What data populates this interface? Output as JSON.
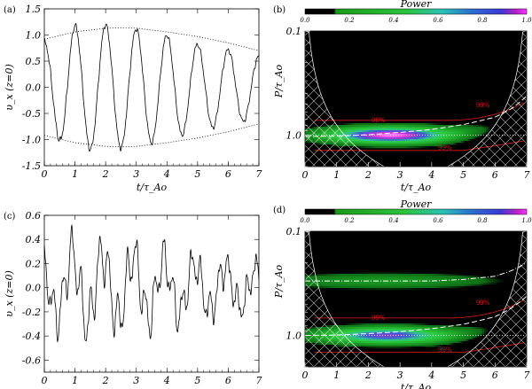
{
  "figure": {
    "panel_labels": [
      "(a)",
      "(b)",
      "(c)",
      "(d)"
    ],
    "colorbar_title": "Power",
    "colorbar_ticks": [
      "0.0",
      "0.2",
      "0.4",
      "0.6",
      "0.8",
      "1.0"
    ],
    "contour_label": "99%"
  },
  "chart_data": [
    {
      "id": "a",
      "type": "line",
      "title": "",
      "xlabel": "t/τ_Ao",
      "ylabel": "υ_x (z=0)",
      "xlim": [
        0,
        7
      ],
      "ylim": [
        -1.5,
        1.5
      ],
      "xticks": [
        "0",
        "1",
        "2",
        "3",
        "4",
        "5",
        "6",
        "7"
      ],
      "yticks": [
        "-1.5",
        "-1.0",
        "-0.5",
        "0.0",
        "0.5",
        "1.0",
        "1.5"
      ],
      "period": 1.0,
      "envelope": {
        "style": "dotted",
        "t": [
          0,
          1,
          2,
          2.5,
          3,
          4,
          5,
          6,
          7
        ],
        "amplitude": [
          0.92,
          1.06,
          1.13,
          1.14,
          1.13,
          1.06,
          0.97,
          0.85,
          0.7
        ]
      },
      "signal_amplitude": {
        "t": [
          0,
          1,
          2,
          3,
          4,
          5,
          6,
          7
        ],
        "amplitude": [
          0.85,
          1.18,
          1.2,
          1.12,
          1.0,
          0.82,
          0.72,
          0.58
        ]
      }
    },
    {
      "id": "b",
      "type": "heatmap",
      "xlabel": "t/τ_Ao",
      "ylabel": "P/τ_Ao",
      "xlim": [
        0,
        7
      ],
      "ylim": [
        0.1,
        2.0
      ],
      "yscale": "log",
      "xticks": [
        "0",
        "1",
        "2",
        "3",
        "4",
        "5",
        "6",
        "7"
      ],
      "yticks": [
        "0.1",
        "1.0"
      ],
      "colorbar_range": [
        0.0,
        1.0
      ],
      "bands": [
        {
          "period_center": 1.0,
          "t_peak": 2.7,
          "peak_power": 1.0,
          "width": 2.2,
          "drift_end": 0.35
        }
      ],
      "ridge_dashed": {
        "t": [
          0,
          1,
          2,
          3,
          4,
          5,
          6,
          6.5,
          7
        ],
        "period": [
          1.03,
          1.02,
          0.99,
          0.94,
          0.88,
          0.79,
          0.67,
          0.56,
          0.42
        ]
      },
      "ridge_dotted_period": 1.0,
      "contour_99": {
        "lower_period": 0.72,
        "upper_period": 1.4
      }
    },
    {
      "id": "c",
      "type": "line",
      "title": "",
      "xlabel": "t/τ_Ao",
      "ylabel": "υ_x (z=0)",
      "xlim": [
        0,
        7
      ],
      "ylim": [
        -0.7,
        0.6
      ],
      "xticks": [
        "0",
        "1",
        "2",
        "3",
        "4",
        "5",
        "6",
        "7"
      ],
      "yticks": [
        "-0.6",
        "-0.4",
        "-0.2",
        "0.0",
        "0.2",
        "0.4",
        "0.6"
      ],
      "period": 1.0,
      "signal_amplitude": {
        "t": [
          0,
          1,
          2,
          3,
          4,
          5,
          6,
          7
        ],
        "amplitude": [
          0.3,
          0.45,
          0.42,
          0.4,
          0.34,
          0.3,
          0.26,
          0.22
        ]
      },
      "secondary_period": 0.3
    },
    {
      "id": "d",
      "type": "heatmap",
      "xlabel": "t/τ_Ao",
      "ylabel": "P/τ_Ao",
      "xlim": [
        0,
        7
      ],
      "ylim": [
        0.1,
        2.0
      ],
      "yscale": "log",
      "xticks": [
        "0",
        "1",
        "2",
        "3",
        "4",
        "5",
        "6",
        "7"
      ],
      "yticks": [
        "0.1",
        "1.0"
      ],
      "colorbar_range": [
        0.0,
        1.0
      ],
      "bands": [
        {
          "period_center": 1.0,
          "t_peak": 2.6,
          "peak_power": 0.85,
          "width": 2.3,
          "drift_end": 0.3
        },
        {
          "period_center": 0.3,
          "t_peak": 2.5,
          "peak_power": 0.3,
          "width": 4.0,
          "drift_end": 0.0
        }
      ],
      "ridge_dashed": {
        "t": [
          0,
          1,
          2,
          3,
          4,
          5,
          6,
          6.5,
          7
        ],
        "period": [
          1.0,
          0.99,
          0.96,
          0.92,
          0.86,
          0.78,
          0.66,
          0.55,
          0.42
        ]
      },
      "ridge_dashdot": {
        "t": [
          0,
          1,
          2,
          3,
          4,
          5,
          6,
          6.5,
          7
        ],
        "period": [
          0.3,
          0.3,
          0.3,
          0.3,
          0.3,
          0.29,
          0.27,
          0.24,
          0.2
        ]
      },
      "ridge_dotted_period": 1.0,
      "contour_99": {
        "lower_period": 0.68,
        "upper_period": 1.45
      }
    }
  ]
}
